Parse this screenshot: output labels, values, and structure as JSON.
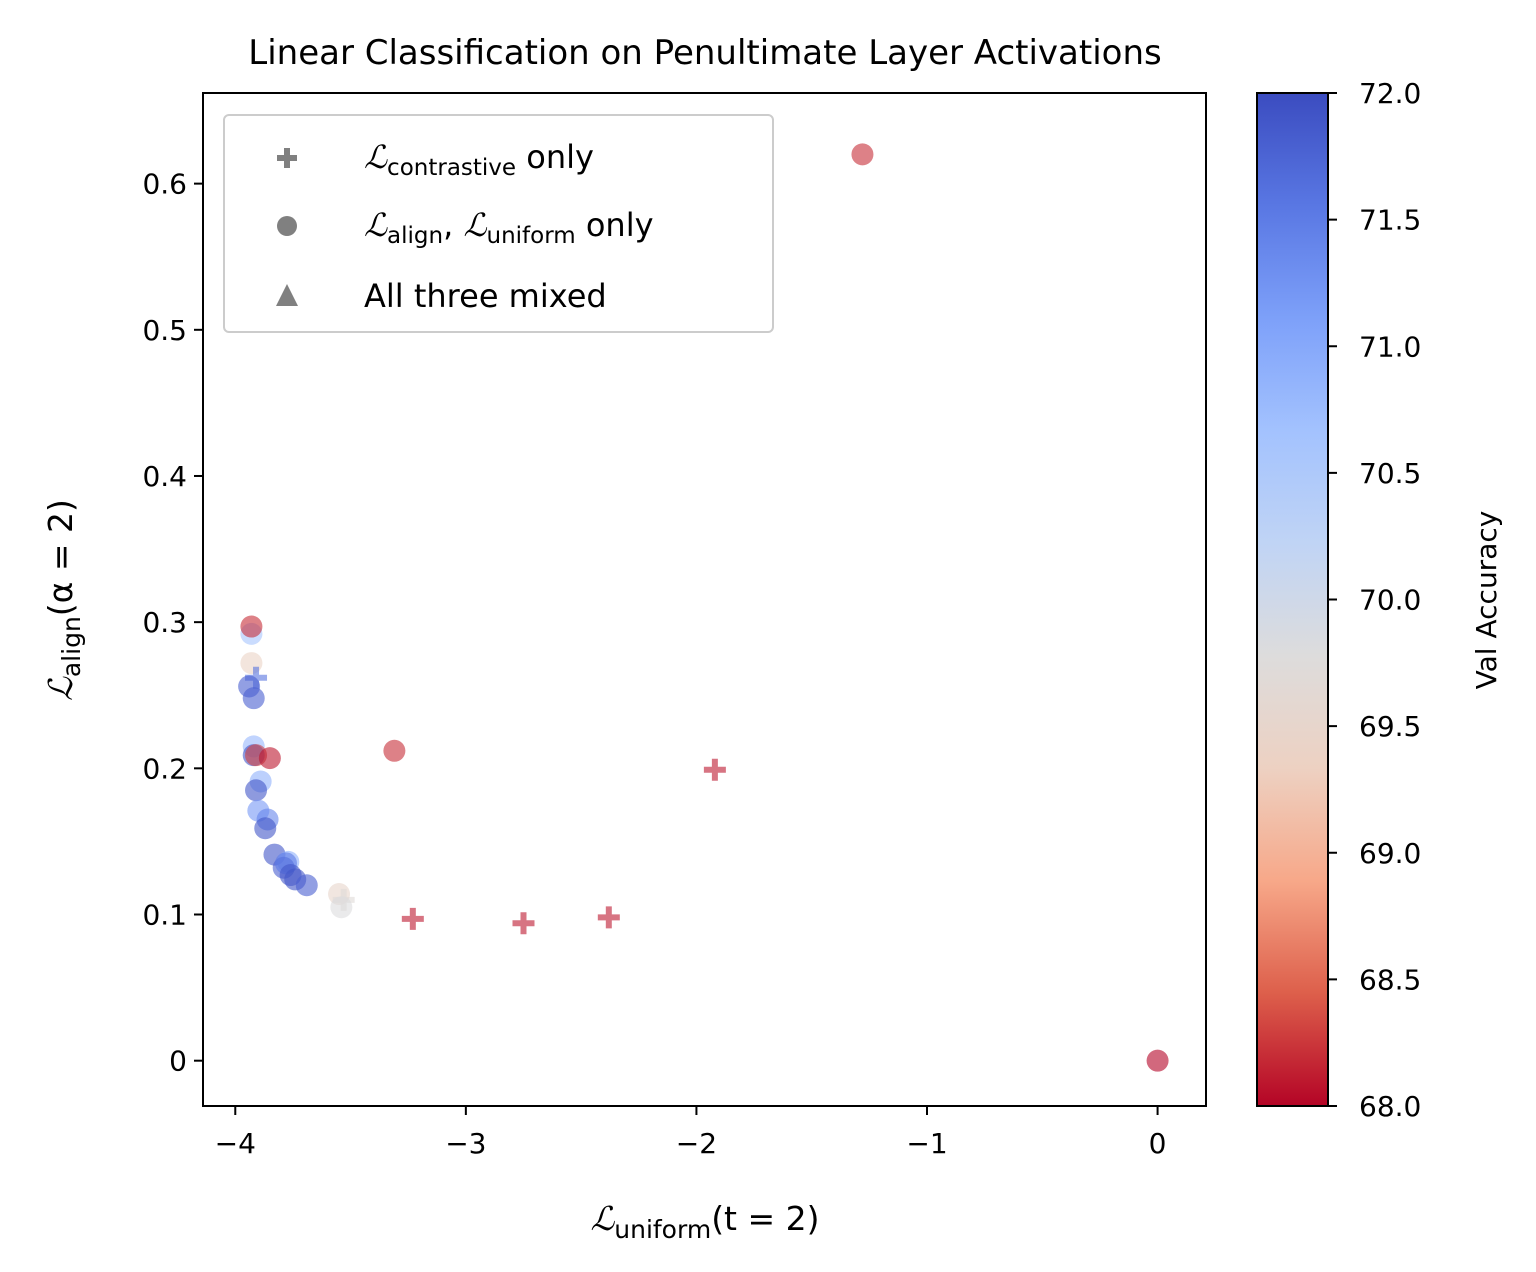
{
  "chart_data": {
    "type": "scatter",
    "title": "Linear Classification on Penultimate Layer Activations",
    "xlabel": {
      "script": "ℒ",
      "sub": "uniform",
      "rest": "(t = 2)"
    },
    "ylabel": {
      "script": "ℒ",
      "sub": "align",
      "rest": "(α = 2)"
    },
    "xlim": [
      -4.14,
      0.21
    ],
    "ylim": [
      -0.031,
      0.662
    ],
    "x_ticks": [
      -4,
      -3,
      -2,
      -1,
      0
    ],
    "x_tick_labels": [
      "−4",
      "−3",
      "−2",
      "−1",
      "0"
    ],
    "y_ticks": [
      0,
      0.1,
      0.2,
      0.3,
      0.4,
      0.5,
      0.6
    ],
    "y_tick_labels": [
      "0",
      "0.1",
      "0.2",
      "0.3",
      "0.4",
      "0.5",
      "0.6"
    ],
    "grid": false,
    "legend": {
      "position": "upper-left",
      "entries": [
        {
          "marker": "plus",
          "script": "ℒ",
          "sub": "contrastive",
          "rest": " only"
        },
        {
          "marker": "circle",
          "script": "ℒ",
          "sub": "align",
          "mid": ", ",
          "script2": "ℒ",
          "sub2": "uniform",
          "rest": " only"
        },
        {
          "marker": "triangle",
          "text": "All three mixed"
        }
      ]
    },
    "colorbar": {
      "label": "Val Accuracy",
      "range": [
        68.0,
        72.0
      ],
      "ticks": [
        68.0,
        68.5,
        69.0,
        69.5,
        70.0,
        70.5,
        71.0,
        71.5,
        72.0
      ],
      "tick_labels": [
        "68.0",
        "68.5",
        "69.0",
        "69.5",
        "70.0",
        "70.5",
        "71.0",
        "71.5",
        "72.0"
      ],
      "colormap": "coolwarm_r",
      "stops": [
        "#b40426",
        "#dd5f4b",
        "#f7a889",
        "#edd1c2",
        "#dddcdc",
        "#c0d4f5",
        "#a3c2fe",
        "#7da0f9",
        "#5977e3",
        "#3b4cc0"
      ]
    },
    "points": [
      {
        "marker": "circle",
        "x": -1.28,
        "y": 0.62,
        "acc": 68.2
      },
      {
        "marker": "circle",
        "x": 0.0,
        "y": 0.0,
        "acc": 68.0
      },
      {
        "marker": "circle",
        "x": -3.31,
        "y": 0.212,
        "acc": 68.2
      },
      {
        "marker": "plus",
        "x": -1.92,
        "y": 0.199,
        "acc": 68.1
      },
      {
        "marker": "plus",
        "x": -3.23,
        "y": 0.097,
        "acc": 68.1
      },
      {
        "marker": "plus",
        "x": -2.75,
        "y": 0.094,
        "acc": 68.1
      },
      {
        "marker": "plus",
        "x": -2.38,
        "y": 0.098,
        "acc": 68.1
      },
      {
        "marker": "circle",
        "x": -3.93,
        "y": 0.292,
        "acc": 70.6
      },
      {
        "marker": "circle",
        "x": -3.93,
        "y": 0.297,
        "acc": 68.2
      },
      {
        "marker": "circle",
        "x": -3.93,
        "y": 0.272,
        "acc": 69.4
      },
      {
        "marker": "plus",
        "x": -3.91,
        "y": 0.262,
        "acc": 71.6
      },
      {
        "marker": "circle",
        "x": -3.94,
        "y": 0.256,
        "acc": 71.8
      },
      {
        "marker": "circle",
        "x": -3.92,
        "y": 0.248,
        "acc": 71.8
      },
      {
        "marker": "circle",
        "x": -3.92,
        "y": 0.215,
        "acc": 70.8
      },
      {
        "marker": "circle",
        "x": -3.92,
        "y": 0.209,
        "acc": 71.9
      },
      {
        "marker": "circle",
        "x": -3.91,
        "y": 0.209,
        "acc": 68.3
      },
      {
        "marker": "circle",
        "x": -3.85,
        "y": 0.207,
        "acc": 68.1
      },
      {
        "marker": "circle",
        "x": -3.89,
        "y": 0.191,
        "acc": 70.9
      },
      {
        "marker": "circle",
        "x": -3.91,
        "y": 0.185,
        "acc": 71.9
      },
      {
        "marker": "circle",
        "x": -3.9,
        "y": 0.171,
        "acc": 71.2
      },
      {
        "marker": "circle",
        "x": -3.86,
        "y": 0.165,
        "acc": 71.4
      },
      {
        "marker": "circle",
        "x": -3.87,
        "y": 0.159,
        "acc": 71.9
      },
      {
        "marker": "circle",
        "x": -3.83,
        "y": 0.141,
        "acc": 71.9
      },
      {
        "marker": "circle",
        "x": -3.77,
        "y": 0.136,
        "acc": 70.9
      },
      {
        "marker": "circle",
        "x": -3.79,
        "y": 0.132,
        "acc": 71.8
      },
      {
        "marker": "circle",
        "x": -3.78,
        "y": 0.135,
        "acc": 71.5
      },
      {
        "marker": "circle",
        "x": -3.76,
        "y": 0.127,
        "acc": 71.9
      },
      {
        "marker": "circle",
        "x": -3.74,
        "y": 0.124,
        "acc": 71.9
      },
      {
        "marker": "circle",
        "x": -3.69,
        "y": 0.12,
        "acc": 71.8
      },
      {
        "marker": "circle",
        "x": -3.55,
        "y": 0.114,
        "acc": 69.5
      },
      {
        "marker": "plus",
        "x": -3.53,
        "y": 0.11,
        "acc": 69.7
      },
      {
        "marker": "circle",
        "x": -3.54,
        "y": 0.105,
        "acc": 69.8
      }
    ]
  }
}
